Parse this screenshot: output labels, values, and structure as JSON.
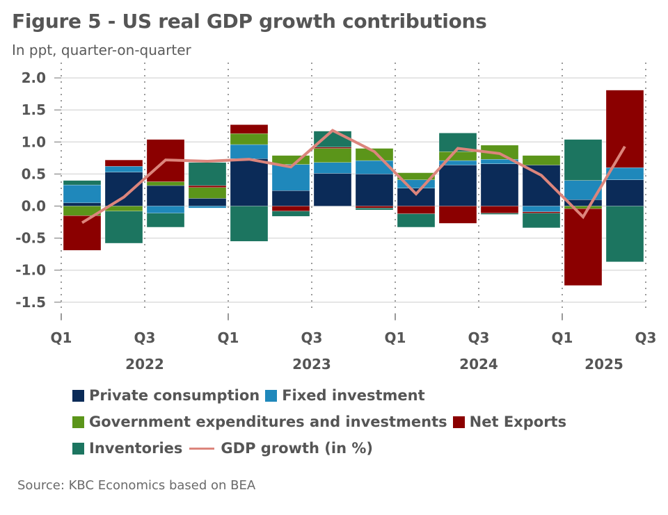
{
  "header": {
    "title": "Figure 5 - US real GDP growth contributions",
    "subtitle": "In ppt, quarter-on-quarter"
  },
  "footer": {
    "source": "Source: KBC Economics based on BEA"
  },
  "chart_data": {
    "type": "bar",
    "stacked": true,
    "title": "Figure 5 - US real GDP growth contributions",
    "subtitle": "In ppt, quarter-on-quarter",
    "xlabel": "",
    "ylabel": "",
    "ylim": [
      -1.5,
      2.0
    ],
    "yticks": [
      2.0,
      1.5,
      1.0,
      0.5,
      0.0,
      -0.5,
      -1.0,
      -1.5
    ],
    "ytick_labels": [
      "2.0",
      "1.5",
      "1.0",
      "0.5",
      "0.0",
      "-0.5",
      "-1.0",
      "-1.5"
    ],
    "grid": true,
    "legend_position": "bottom",
    "categories": [
      "2022Q1",
      "2022Q2",
      "2022Q3",
      "2022Q4",
      "2023Q1",
      "2023Q2",
      "2023Q3",
      "2023Q4",
      "2024Q1",
      "2024Q2",
      "2024Q3",
      "2024Q4",
      "2025Q1",
      "2025Q2"
    ],
    "xtick_labels": [
      "Q1",
      "Q3",
      "Q1",
      "Q3",
      "Q1",
      "Q3",
      "Q1",
      "Q3"
    ],
    "year_labels": [
      "2022",
      "2023",
      "2024",
      "2025"
    ],
    "series": [
      {
        "name": "Private consumption",
        "color": "#0b2b58",
        "values": [
          0.05,
          0.53,
          0.32,
          0.12,
          0.74,
          0.24,
          0.51,
          0.5,
          0.28,
          0.64,
          0.66,
          0.64,
          0.1,
          0.41
        ]
      },
      {
        "name": "Fixed investment",
        "color": "#1f88bb",
        "values": [
          0.28,
          0.09,
          -0.11,
          -0.03,
          0.22,
          0.41,
          0.17,
          0.21,
          0.13,
          0.07,
          0.07,
          -0.09,
          0.3,
          0.19
        ]
      },
      {
        "name": "Government expenditures and investments",
        "color": "#5b951a",
        "values": [
          -0.15,
          -0.08,
          0.06,
          0.17,
          0.17,
          0.14,
          0.22,
          0.19,
          0.11,
          0.14,
          0.22,
          0.15,
          -0.04,
          0.0
        ]
      },
      {
        "name": "Net Exports",
        "color": "#8b0000",
        "values": [
          -0.54,
          0.1,
          0.66,
          0.03,
          0.14,
          -0.08,
          0.02,
          -0.03,
          -0.12,
          -0.27,
          -0.11,
          -0.02,
          -1.2,
          1.21
        ]
      },
      {
        "name": "Inventories",
        "color": "#1c7560",
        "values": [
          0.07,
          -0.5,
          -0.22,
          0.36,
          -0.55,
          -0.08,
          0.25,
          -0.03,
          -0.21,
          0.29,
          -0.02,
          -0.23,
          0.64,
          -0.87
        ]
      }
    ],
    "line_series": {
      "name": "GDP growth (in %)",
      "color": "#dc857c",
      "values": [
        -0.26,
        0.14,
        0.72,
        0.7,
        0.73,
        0.61,
        1.18,
        0.85,
        0.19,
        0.9,
        0.82,
        0.48,
        -0.17,
        0.93
      ]
    }
  }
}
